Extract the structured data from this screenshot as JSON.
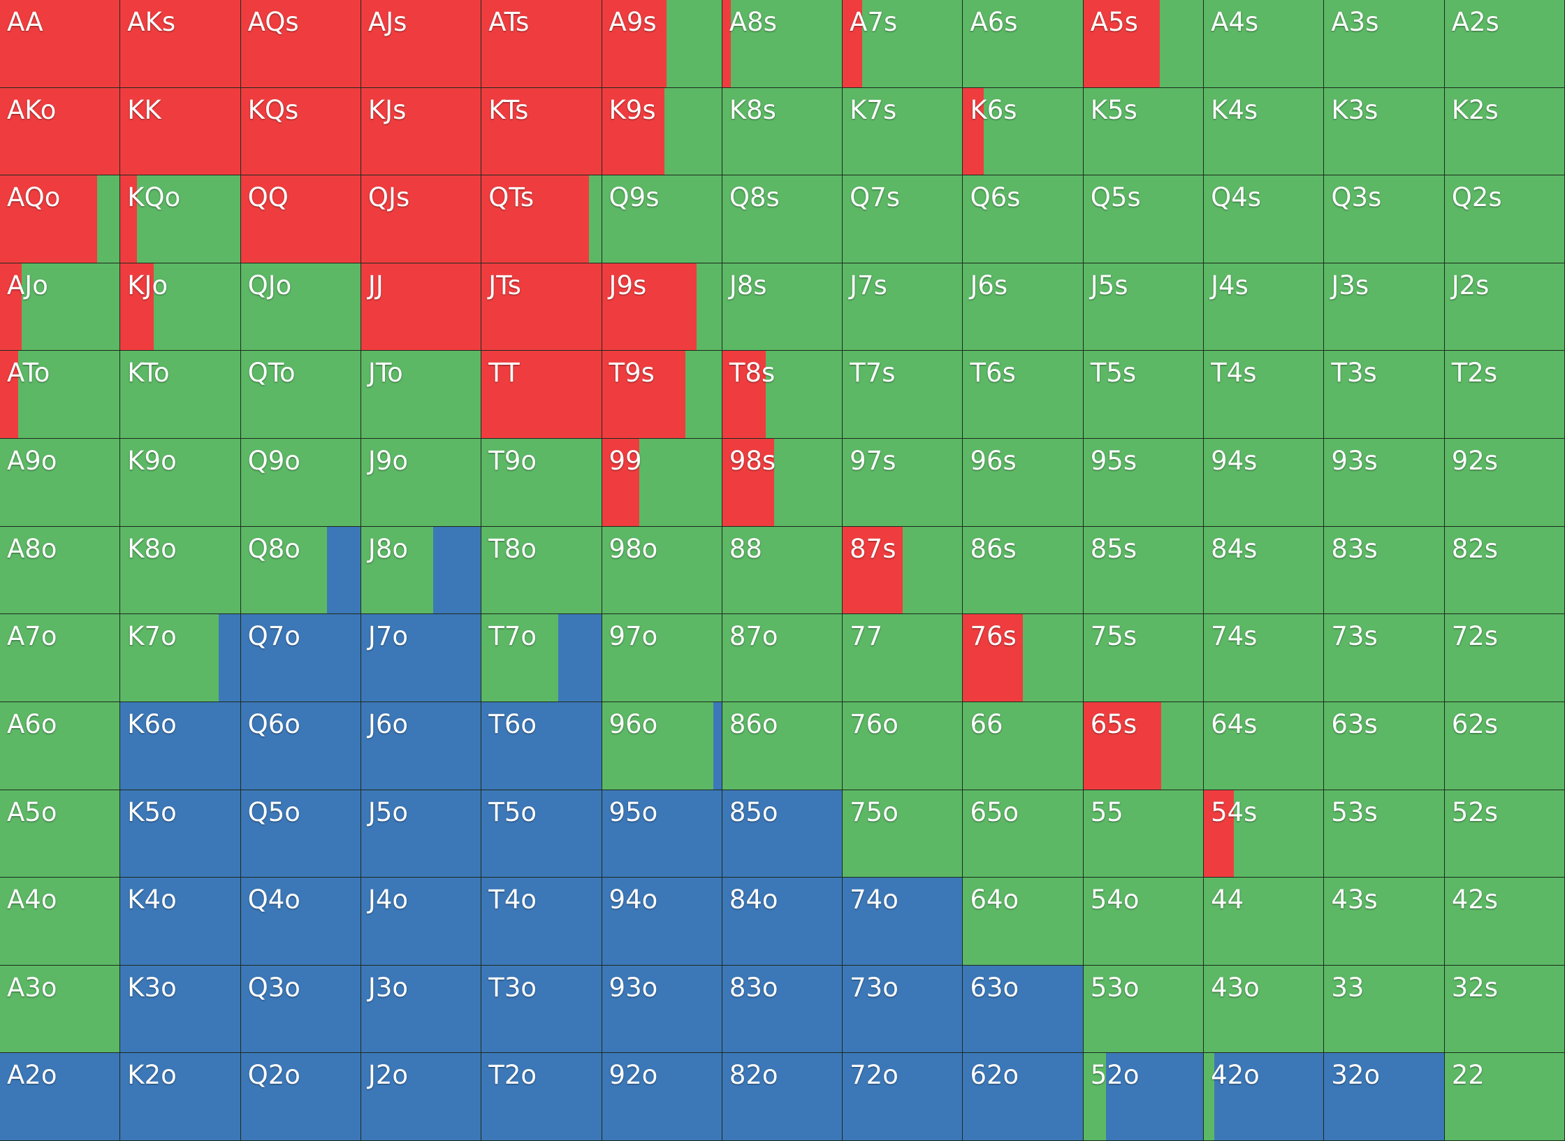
{
  "colors": {
    "raise": "#ef3d3f",
    "call": "#5cb865",
    "fold": "#3c78b8"
  },
  "grid": {
    "rows": [
      [
        {
          "hand": "AA",
          "raise": 100,
          "call": 0,
          "fold": 0
        },
        {
          "hand": "AKs",
          "raise": 100,
          "call": 0,
          "fold": 0
        },
        {
          "hand": "AQs",
          "raise": 100,
          "call": 0,
          "fold": 0
        },
        {
          "hand": "AJs",
          "raise": 100,
          "call": 0,
          "fold": 0
        },
        {
          "hand": "ATs",
          "raise": 100,
          "call": 0,
          "fold": 0
        },
        {
          "hand": "A9s",
          "raise": 54,
          "call": 46,
          "fold": 0
        },
        {
          "hand": "A8s",
          "raise": 7,
          "call": 93,
          "fold": 0
        },
        {
          "hand": "A7s",
          "raise": 16,
          "call": 84,
          "fold": 0
        },
        {
          "hand": "A6s",
          "raise": 0,
          "call": 100,
          "fold": 0
        },
        {
          "hand": "A5s",
          "raise": 64,
          "call": 36,
          "fold": 0
        },
        {
          "hand": "A4s",
          "raise": 0,
          "call": 100,
          "fold": 0
        },
        {
          "hand": "A3s",
          "raise": 0,
          "call": 100,
          "fold": 0
        },
        {
          "hand": "A2s",
          "raise": 0,
          "call": 100,
          "fold": 0
        }
      ],
      [
        {
          "hand": "AKo",
          "raise": 100,
          "call": 0,
          "fold": 0
        },
        {
          "hand": "KK",
          "raise": 100,
          "call": 0,
          "fold": 0
        },
        {
          "hand": "KQs",
          "raise": 100,
          "call": 0,
          "fold": 0
        },
        {
          "hand": "KJs",
          "raise": 100,
          "call": 0,
          "fold": 0
        },
        {
          "hand": "KTs",
          "raise": 100,
          "call": 0,
          "fold": 0
        },
        {
          "hand": "K9s",
          "raise": 52,
          "call": 48,
          "fold": 0
        },
        {
          "hand": "K8s",
          "raise": 0,
          "call": 100,
          "fold": 0
        },
        {
          "hand": "K7s",
          "raise": 0,
          "call": 100,
          "fold": 0
        },
        {
          "hand": "K6s",
          "raise": 17,
          "call": 83,
          "fold": 0
        },
        {
          "hand": "K5s",
          "raise": 0,
          "call": 100,
          "fold": 0
        },
        {
          "hand": "K4s",
          "raise": 0,
          "call": 100,
          "fold": 0
        },
        {
          "hand": "K3s",
          "raise": 0,
          "call": 100,
          "fold": 0
        },
        {
          "hand": "K2s",
          "raise": 0,
          "call": 100,
          "fold": 0
        }
      ],
      [
        {
          "hand": "AQo",
          "raise": 81,
          "call": 19,
          "fold": 0
        },
        {
          "hand": "KQo",
          "raise": 14,
          "call": 86,
          "fold": 0
        },
        {
          "hand": "QQ",
          "raise": 100,
          "call": 0,
          "fold": 0
        },
        {
          "hand": "QJs",
          "raise": 100,
          "call": 0,
          "fold": 0
        },
        {
          "hand": "QTs",
          "raise": 90,
          "call": 10,
          "fold": 0
        },
        {
          "hand": "Q9s",
          "raise": 0,
          "call": 100,
          "fold": 0
        },
        {
          "hand": "Q8s",
          "raise": 0,
          "call": 100,
          "fold": 0
        },
        {
          "hand": "Q7s",
          "raise": 0,
          "call": 100,
          "fold": 0
        },
        {
          "hand": "Q6s",
          "raise": 0,
          "call": 100,
          "fold": 0
        },
        {
          "hand": "Q5s",
          "raise": 0,
          "call": 100,
          "fold": 0
        },
        {
          "hand": "Q4s",
          "raise": 0,
          "call": 100,
          "fold": 0
        },
        {
          "hand": "Q3s",
          "raise": 0,
          "call": 100,
          "fold": 0
        },
        {
          "hand": "Q2s",
          "raise": 0,
          "call": 100,
          "fold": 0
        }
      ],
      [
        {
          "hand": "AJo",
          "raise": 18,
          "call": 82,
          "fold": 0
        },
        {
          "hand": "KJo",
          "raise": 28,
          "call": 72,
          "fold": 0
        },
        {
          "hand": "QJo",
          "raise": 0,
          "call": 100,
          "fold": 0
        },
        {
          "hand": "JJ",
          "raise": 100,
          "call": 0,
          "fold": 0
        },
        {
          "hand": "JTs",
          "raise": 100,
          "call": 0,
          "fold": 0
        },
        {
          "hand": "J9s",
          "raise": 79,
          "call": 21,
          "fold": 0
        },
        {
          "hand": "J8s",
          "raise": 0,
          "call": 100,
          "fold": 0
        },
        {
          "hand": "J7s",
          "raise": 0,
          "call": 100,
          "fold": 0
        },
        {
          "hand": "J6s",
          "raise": 0,
          "call": 100,
          "fold": 0
        },
        {
          "hand": "J5s",
          "raise": 0,
          "call": 100,
          "fold": 0
        },
        {
          "hand": "J4s",
          "raise": 0,
          "call": 100,
          "fold": 0
        },
        {
          "hand": "J3s",
          "raise": 0,
          "call": 100,
          "fold": 0
        },
        {
          "hand": "J2s",
          "raise": 0,
          "call": 100,
          "fold": 0
        }
      ],
      [
        {
          "hand": "ATo",
          "raise": 15,
          "call": 85,
          "fold": 0
        },
        {
          "hand": "KTo",
          "raise": 0,
          "call": 100,
          "fold": 0
        },
        {
          "hand": "QTo",
          "raise": 0,
          "call": 100,
          "fold": 0
        },
        {
          "hand": "JTo",
          "raise": 0,
          "call": 100,
          "fold": 0
        },
        {
          "hand": "TT",
          "raise": 100,
          "call": 0,
          "fold": 0
        },
        {
          "hand": "T9s",
          "raise": 70,
          "call": 30,
          "fold": 0
        },
        {
          "hand": "T8s",
          "raise": 36,
          "call": 64,
          "fold": 0
        },
        {
          "hand": "T7s",
          "raise": 0,
          "call": 100,
          "fold": 0
        },
        {
          "hand": "T6s",
          "raise": 0,
          "call": 100,
          "fold": 0
        },
        {
          "hand": "T5s",
          "raise": 0,
          "call": 100,
          "fold": 0
        },
        {
          "hand": "T4s",
          "raise": 0,
          "call": 100,
          "fold": 0
        },
        {
          "hand": "T3s",
          "raise": 0,
          "call": 100,
          "fold": 0
        },
        {
          "hand": "T2s",
          "raise": 0,
          "call": 100,
          "fold": 0
        }
      ],
      [
        {
          "hand": "A9o",
          "raise": 0,
          "call": 100,
          "fold": 0
        },
        {
          "hand": "K9o",
          "raise": 0,
          "call": 100,
          "fold": 0
        },
        {
          "hand": "Q9o",
          "raise": 0,
          "call": 100,
          "fold": 0
        },
        {
          "hand": "J9o",
          "raise": 0,
          "call": 100,
          "fold": 0
        },
        {
          "hand": "T9o",
          "raise": 0,
          "call": 100,
          "fold": 0
        },
        {
          "hand": "99",
          "raise": 31,
          "call": 69,
          "fold": 0
        },
        {
          "hand": "98s",
          "raise": 43,
          "call": 57,
          "fold": 0
        },
        {
          "hand": "97s",
          "raise": 0,
          "call": 100,
          "fold": 0
        },
        {
          "hand": "96s",
          "raise": 0,
          "call": 100,
          "fold": 0
        },
        {
          "hand": "95s",
          "raise": 0,
          "call": 100,
          "fold": 0
        },
        {
          "hand": "94s",
          "raise": 0,
          "call": 100,
          "fold": 0
        },
        {
          "hand": "93s",
          "raise": 0,
          "call": 100,
          "fold": 0
        },
        {
          "hand": "92s",
          "raise": 0,
          "call": 100,
          "fold": 0
        }
      ],
      [
        {
          "hand": "A8o",
          "raise": 0,
          "call": 100,
          "fold": 0
        },
        {
          "hand": "K8o",
          "raise": 0,
          "call": 100,
          "fold": 0
        },
        {
          "hand": "Q8o",
          "raise": 0,
          "call": 72,
          "fold": 28
        },
        {
          "hand": "J8o",
          "raise": 0,
          "call": 60,
          "fold": 40
        },
        {
          "hand": "T8o",
          "raise": 0,
          "call": 100,
          "fold": 0
        },
        {
          "hand": "98o",
          "raise": 0,
          "call": 100,
          "fold": 0
        },
        {
          "hand": "88",
          "raise": 0,
          "call": 100,
          "fold": 0
        },
        {
          "hand": "87s",
          "raise": 50,
          "call": 50,
          "fold": 0
        },
        {
          "hand": "86s",
          "raise": 0,
          "call": 100,
          "fold": 0
        },
        {
          "hand": "85s",
          "raise": 0,
          "call": 100,
          "fold": 0
        },
        {
          "hand": "84s",
          "raise": 0,
          "call": 100,
          "fold": 0
        },
        {
          "hand": "83s",
          "raise": 0,
          "call": 100,
          "fold": 0
        },
        {
          "hand": "82s",
          "raise": 0,
          "call": 100,
          "fold": 0
        }
      ],
      [
        {
          "hand": "A7o",
          "raise": 0,
          "call": 100,
          "fold": 0
        },
        {
          "hand": "K7o",
          "raise": 0,
          "call": 82,
          "fold": 18
        },
        {
          "hand": "Q7o",
          "raise": 0,
          "call": 0,
          "fold": 100
        },
        {
          "hand": "J7o",
          "raise": 0,
          "call": 0,
          "fold": 100
        },
        {
          "hand": "T7o",
          "raise": 0,
          "call": 64,
          "fold": 36
        },
        {
          "hand": "97o",
          "raise": 0,
          "call": 100,
          "fold": 0
        },
        {
          "hand": "87o",
          "raise": 0,
          "call": 100,
          "fold": 0
        },
        {
          "hand": "77",
          "raise": 0,
          "call": 100,
          "fold": 0
        },
        {
          "hand": "76s",
          "raise": 50,
          "call": 50,
          "fold": 0
        },
        {
          "hand": "75s",
          "raise": 0,
          "call": 100,
          "fold": 0
        },
        {
          "hand": "74s",
          "raise": 0,
          "call": 100,
          "fold": 0
        },
        {
          "hand": "73s",
          "raise": 0,
          "call": 100,
          "fold": 0
        },
        {
          "hand": "72s",
          "raise": 0,
          "call": 100,
          "fold": 0
        }
      ],
      [
        {
          "hand": "A6o",
          "raise": 0,
          "call": 100,
          "fold": 0
        },
        {
          "hand": "K6o",
          "raise": 0,
          "call": 0,
          "fold": 100
        },
        {
          "hand": "Q6o",
          "raise": 0,
          "call": 0,
          "fold": 100
        },
        {
          "hand": "J6o",
          "raise": 0,
          "call": 0,
          "fold": 100
        },
        {
          "hand": "T6o",
          "raise": 0,
          "call": 0,
          "fold": 100
        },
        {
          "hand": "96o",
          "raise": 0,
          "call": 93,
          "fold": 7
        },
        {
          "hand": "86o",
          "raise": 0,
          "call": 100,
          "fold": 0
        },
        {
          "hand": "76o",
          "raise": 0,
          "call": 100,
          "fold": 0
        },
        {
          "hand": "66",
          "raise": 0,
          "call": 100,
          "fold": 0
        },
        {
          "hand": "65s",
          "raise": 65,
          "call": 35,
          "fold": 0
        },
        {
          "hand": "64s",
          "raise": 0,
          "call": 100,
          "fold": 0
        },
        {
          "hand": "63s",
          "raise": 0,
          "call": 100,
          "fold": 0
        },
        {
          "hand": "62s",
          "raise": 0,
          "call": 100,
          "fold": 0
        }
      ],
      [
        {
          "hand": "A5o",
          "raise": 0,
          "call": 100,
          "fold": 0
        },
        {
          "hand": "K5o",
          "raise": 0,
          "call": 0,
          "fold": 100
        },
        {
          "hand": "Q5o",
          "raise": 0,
          "call": 0,
          "fold": 100
        },
        {
          "hand": "J5o",
          "raise": 0,
          "call": 0,
          "fold": 100
        },
        {
          "hand": "T5o",
          "raise": 0,
          "call": 0,
          "fold": 100
        },
        {
          "hand": "95o",
          "raise": 0,
          "call": 0,
          "fold": 100
        },
        {
          "hand": "85o",
          "raise": 0,
          "call": 0,
          "fold": 100
        },
        {
          "hand": "75o",
          "raise": 0,
          "call": 100,
          "fold": 0
        },
        {
          "hand": "65o",
          "raise": 0,
          "call": 100,
          "fold": 0
        },
        {
          "hand": "55",
          "raise": 0,
          "call": 100,
          "fold": 0
        },
        {
          "hand": "54s",
          "raise": 25,
          "call": 75,
          "fold": 0
        },
        {
          "hand": "53s",
          "raise": 0,
          "call": 100,
          "fold": 0
        },
        {
          "hand": "52s",
          "raise": 0,
          "call": 100,
          "fold": 0
        }
      ],
      [
        {
          "hand": "A4o",
          "raise": 0,
          "call": 100,
          "fold": 0
        },
        {
          "hand": "K4o",
          "raise": 0,
          "call": 0,
          "fold": 100
        },
        {
          "hand": "Q4o",
          "raise": 0,
          "call": 0,
          "fold": 100
        },
        {
          "hand": "J4o",
          "raise": 0,
          "call": 0,
          "fold": 100
        },
        {
          "hand": "T4o",
          "raise": 0,
          "call": 0,
          "fold": 100
        },
        {
          "hand": "94o",
          "raise": 0,
          "call": 0,
          "fold": 100
        },
        {
          "hand": "84o",
          "raise": 0,
          "call": 0,
          "fold": 100
        },
        {
          "hand": "74o",
          "raise": 0,
          "call": 0,
          "fold": 100
        },
        {
          "hand": "64o",
          "raise": 0,
          "call": 100,
          "fold": 0
        },
        {
          "hand": "54o",
          "raise": 0,
          "call": 100,
          "fold": 0
        },
        {
          "hand": "44",
          "raise": 0,
          "call": 100,
          "fold": 0
        },
        {
          "hand": "43s",
          "raise": 0,
          "call": 100,
          "fold": 0
        },
        {
          "hand": "42s",
          "raise": 0,
          "call": 100,
          "fold": 0
        }
      ],
      [
        {
          "hand": "A3o",
          "raise": 0,
          "call": 100,
          "fold": 0
        },
        {
          "hand": "K3o",
          "raise": 0,
          "call": 0,
          "fold": 100
        },
        {
          "hand": "Q3o",
          "raise": 0,
          "call": 0,
          "fold": 100
        },
        {
          "hand": "J3o",
          "raise": 0,
          "call": 0,
          "fold": 100
        },
        {
          "hand": "T3o",
          "raise": 0,
          "call": 0,
          "fold": 100
        },
        {
          "hand": "93o",
          "raise": 0,
          "call": 0,
          "fold": 100
        },
        {
          "hand": "83o",
          "raise": 0,
          "call": 0,
          "fold": 100
        },
        {
          "hand": "73o",
          "raise": 0,
          "call": 0,
          "fold": 100
        },
        {
          "hand": "63o",
          "raise": 0,
          "call": 0,
          "fold": 100
        },
        {
          "hand": "53o",
          "raise": 0,
          "call": 100,
          "fold": 0
        },
        {
          "hand": "43o",
          "raise": 0,
          "call": 100,
          "fold": 0
        },
        {
          "hand": "33",
          "raise": 0,
          "call": 100,
          "fold": 0
        },
        {
          "hand": "32s",
          "raise": 0,
          "call": 100,
          "fold": 0
        }
      ],
      [
        {
          "hand": "A2o",
          "raise": 0,
          "call": 0,
          "fold": 100
        },
        {
          "hand": "K2o",
          "raise": 0,
          "call": 0,
          "fold": 100
        },
        {
          "hand": "Q2o",
          "raise": 0,
          "call": 0,
          "fold": 100
        },
        {
          "hand": "J2o",
          "raise": 0,
          "call": 0,
          "fold": 100
        },
        {
          "hand": "T2o",
          "raise": 0,
          "call": 0,
          "fold": 100
        },
        {
          "hand": "92o",
          "raise": 0,
          "call": 0,
          "fold": 100
        },
        {
          "hand": "82o",
          "raise": 0,
          "call": 0,
          "fold": 100
        },
        {
          "hand": "72o",
          "raise": 0,
          "call": 0,
          "fold": 100
        },
        {
          "hand": "62o",
          "raise": 0,
          "call": 0,
          "fold": 100
        },
        {
          "hand": "52o",
          "raise": 0,
          "call": 19,
          "fold": 81
        },
        {
          "hand": "42o",
          "raise": 0,
          "call": 9,
          "fold": 91
        },
        {
          "hand": "32o",
          "raise": 0,
          "call": 0,
          "fold": 100
        },
        {
          "hand": "22",
          "raise": 0,
          "call": 100,
          "fold": 0
        }
      ]
    ]
  }
}
